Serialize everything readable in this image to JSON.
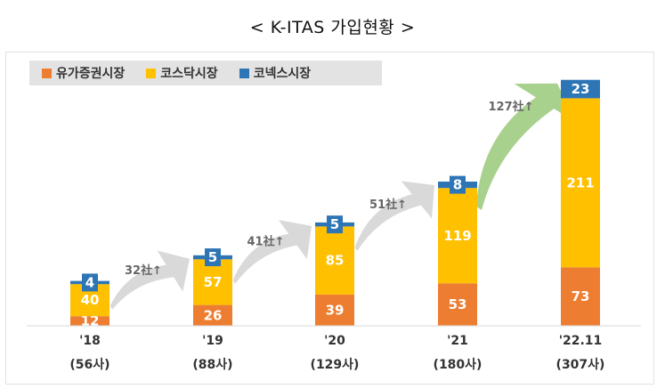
{
  "title": "< K-ITAS 가입현황 >",
  "colors": {
    "kospi": "#ED7D31",
    "kosdaq": "#FFC000",
    "konex": "#2E75B6",
    "arrow_gray": "#d9d9d9",
    "arrow_green": "#a9d18e"
  },
  "chart_data": {
    "type": "bar",
    "stacked": true,
    "categories": [
      "'18",
      "'19",
      "'20",
      "'21",
      "'22.11"
    ],
    "category_counts": [
      "(56사)",
      "(88사)",
      "(129사)",
      "(180사)",
      "(307사)"
    ],
    "series": [
      {
        "name": "유가증권시장",
        "values": [
          12,
          26,
          39,
          53,
          73
        ]
      },
      {
        "name": "코스닥시장",
        "values": [
          40,
          57,
          85,
          119,
          211
        ]
      },
      {
        "name": "코넥스시장",
        "values": [
          4,
          5,
          5,
          8,
          23
        ]
      }
    ],
    "growth_labels": [
      "32社↑",
      "41社↑",
      "51社↑",
      "127社↑"
    ],
    "legend_position": "top-left",
    "grid": false
  }
}
